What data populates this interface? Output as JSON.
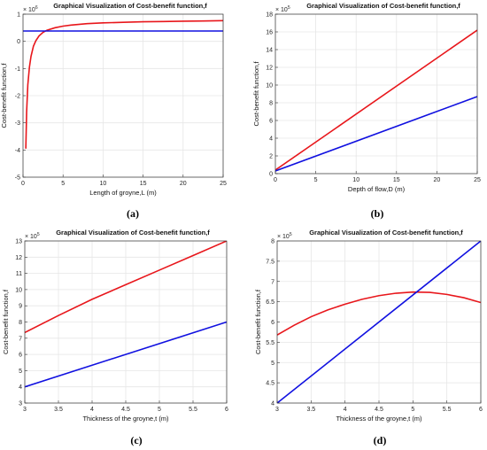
{
  "figure": {
    "captions": [
      "(a)",
      "(b)",
      "(c)",
      "(d)"
    ]
  },
  "colors": {
    "red_series": "#e8161b",
    "blue_series": "#1010e0",
    "grid": "#e6e6e6",
    "axis": "#333333"
  },
  "chart_data": [
    {
      "type": "line",
      "title": "Graphical Visualization of Cost-benefit function,f",
      "xlabel": "Length of groyne,L (m)",
      "ylabel": "Cost-benefit function,f",
      "xlim": [
        0,
        25
      ],
      "ylim": [
        -5,
        1
      ],
      "exponent_label": "× 10^6",
      "xticks": [
        "0",
        "5",
        "10",
        "15",
        "20",
        "25"
      ],
      "yticks": [
        "-5",
        "-4",
        "-3",
        "-2",
        "-1",
        "0",
        "1"
      ],
      "grid": true,
      "series": [
        {
          "color": "red",
          "x": [
            0.35,
            0.45,
            0.6,
            0.8,
            1.0,
            1.3,
            1.6,
            2.0,
            2.5,
            3.0,
            4.0,
            5.0,
            6.0,
            8.0,
            10.0,
            12.5,
            15.0,
            17.5,
            20.0,
            22.5,
            25.0
          ],
          "y": [
            -3.95,
            -2.6,
            -1.6,
            -0.95,
            -0.55,
            -0.18,
            0.02,
            0.2,
            0.33,
            0.41,
            0.5,
            0.56,
            0.6,
            0.65,
            0.68,
            0.7,
            0.72,
            0.73,
            0.74,
            0.75,
            0.76
          ]
        },
        {
          "color": "blue",
          "x": [
            0,
            25
          ],
          "y": [
            0.38,
            0.38
          ]
        }
      ]
    },
    {
      "type": "line",
      "title": "Graphical Visualization of Cost-benefit function,f",
      "xlabel": "Depth of flow,D (m)",
      "ylabel": "Cost-benefit function,f",
      "xlim": [
        0,
        25
      ],
      "ylim": [
        0,
        18
      ],
      "exponent_label": "× 10^5",
      "xticks": [
        "0",
        "5",
        "10",
        "15",
        "20",
        "25"
      ],
      "yticks": [
        "0",
        "2",
        "4",
        "6",
        "8",
        "10",
        "12",
        "14",
        "16",
        "18"
      ],
      "grid": true,
      "series": [
        {
          "color": "red",
          "x": [
            0,
            25
          ],
          "y": [
            0.4,
            16.2
          ]
        },
        {
          "color": "blue",
          "x": [
            0,
            25
          ],
          "y": [
            0.3,
            8.7
          ]
        }
      ]
    },
    {
      "type": "line",
      "title": "Graphical Visualization of Cost-benefit function,f",
      "xlabel": "Thickness of the groyne,t (m)",
      "ylabel": "Cost-benefit function,f",
      "xlim": [
        3,
        6
      ],
      "ylim": [
        3,
        13
      ],
      "exponent_label": "× 10^5",
      "xticks": [
        "3",
        "3.5",
        "4",
        "4.5",
        "5",
        "5.5",
        "6"
      ],
      "yticks": [
        "3",
        "4",
        "5",
        "6",
        "7",
        "8",
        "9",
        "10",
        "11",
        "12",
        "13"
      ],
      "grid": true,
      "series": [
        {
          "color": "red",
          "x": [
            3,
            3.5,
            4,
            4.5,
            5,
            5.5,
            6
          ],
          "y": [
            7.35,
            8.4,
            9.4,
            10.3,
            11.2,
            12.1,
            13.0
          ]
        },
        {
          "color": "blue",
          "x": [
            3,
            6
          ],
          "y": [
            4.0,
            8.0
          ]
        }
      ]
    },
    {
      "type": "line",
      "title": "Graphical Visualization of Cost-benefit function,f",
      "xlabel": "Thickness of the groyne,t (m)",
      "ylabel": "Cost-benefit function,f",
      "xlim": [
        3,
        6
      ],
      "ylim": [
        4,
        8
      ],
      "exponent_label": "× 10^5",
      "xticks": [
        "3",
        "3.5",
        "4",
        "4.5",
        "5",
        "5.5",
        "6"
      ],
      "yticks": [
        "4",
        "4.5",
        "5",
        "5.5",
        "6",
        "6.5",
        "7",
        "7.5",
        "8"
      ],
      "grid": true,
      "series": [
        {
          "color": "red",
          "x": [
            3,
            3.25,
            3.5,
            3.75,
            4,
            4.25,
            4.5,
            4.75,
            5,
            5.25,
            5.5,
            5.75,
            6
          ],
          "y": [
            5.68,
            5.92,
            6.13,
            6.3,
            6.44,
            6.56,
            6.65,
            6.71,
            6.74,
            6.73,
            6.68,
            6.6,
            6.48
          ]
        },
        {
          "color": "blue",
          "x": [
            3,
            6
          ],
          "y": [
            4.0,
            8.0
          ]
        }
      ]
    }
  ]
}
